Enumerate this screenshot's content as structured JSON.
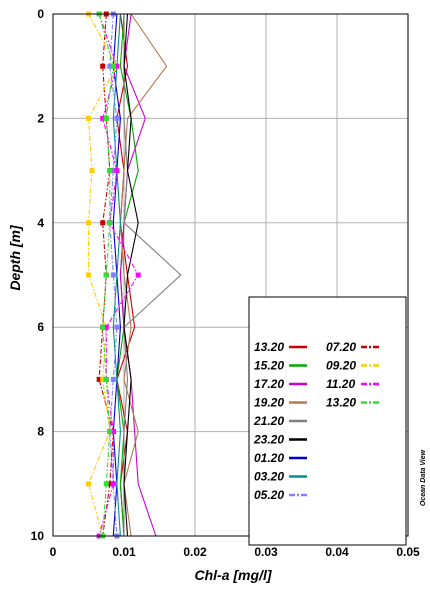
{
  "chart_data": {
    "type": "line",
    "orientation": "vertical-profile",
    "xlabel": "Chl-a [mg/l]",
    "ylabel": "Depth [m]",
    "xlim": [
      0,
      0.05
    ],
    "ylim": [
      0,
      10
    ],
    "y_inverted": true,
    "x_ticks": [
      "0",
      "0.01",
      "0.02",
      "0.03",
      "0.04",
      "0.05"
    ],
    "y_ticks": [
      "0",
      "2",
      "4",
      "6",
      "8",
      "10"
    ],
    "grid": true,
    "legend_position": "bottom-right",
    "credit": "Ocean Data View",
    "depths": [
      0,
      1,
      2,
      3,
      4,
      5,
      6,
      7,
      8,
      9,
      10
    ],
    "series": [
      {
        "name": "13.20",
        "color": "#cc0000",
        "dash": "solid",
        "values": [
          0.0095,
          0.0105,
          0.009,
          0.01,
          0.0095,
          0.0105,
          0.0115,
          0.009,
          0.0105,
          0.0095,
          0.01
        ]
      },
      {
        "name": "15.20",
        "color": "#00aa00",
        "dash": "solid",
        "values": [
          0.01,
          0.0095,
          0.011,
          0.012,
          0.01,
          0.0095,
          0.01,
          0.009,
          0.01,
          0.0095,
          0.01
        ]
      },
      {
        "name": "17.20",
        "color": "#cc00cc",
        "dash": "solid",
        "values": [
          0.011,
          0.01,
          0.013,
          0.0105,
          0.01,
          0.0095,
          0.01,
          0.011,
          0.0115,
          0.012,
          0.0145
        ]
      },
      {
        "name": "19.20",
        "color": "#b87850",
        "dash": "solid",
        "values": [
          0.011,
          0.016,
          0.0105,
          0.01,
          0.0095,
          0.01,
          0.011,
          0.01,
          0.012,
          0.01,
          0.011
        ]
      },
      {
        "name": "21.20",
        "color": "#808080",
        "dash": "solid",
        "values": [
          0.01,
          0.01,
          0.01,
          0.0105,
          0.01,
          0.018,
          0.01,
          0.0105,
          0.01,
          0.01,
          0.01
        ]
      },
      {
        "name": "23.20",
        "color": "#000000",
        "dash": "solid",
        "values": [
          0.0105,
          0.01,
          0.011,
          0.0105,
          0.012,
          0.0105,
          0.01,
          0.011,
          0.0105,
          0.01,
          0.0105
        ]
      },
      {
        "name": "01.20",
        "color": "#0000cc",
        "dash": "solid",
        "values": [
          0.009,
          0.0085,
          0.0095,
          0.009,
          0.0085,
          0.009,
          0.0095,
          0.009,
          0.0085,
          0.009,
          0.0085
        ]
      },
      {
        "name": "03.20",
        "color": "#009090",
        "dash": "solid",
        "values": [
          0.0095,
          0.009,
          0.0085,
          0.009,
          0.0095,
          0.009,
          0.0085,
          0.009,
          0.0095,
          0.009,
          0.0095
        ]
      },
      {
        "name": "05.20",
        "color": "#8080ff",
        "dash": "dashdot",
        "values": [
          0.0085,
          0.008,
          0.009,
          0.0085,
          0.008,
          0.0085,
          0.009,
          0.0085,
          0.008,
          0.0085,
          0.009
        ]
      },
      {
        "name": "07.20",
        "color": "#cc0000",
        "dash": "dashdot",
        "values": [
          0.0075,
          0.007,
          0.0075,
          0.008,
          0.007,
          0.0075,
          0.007,
          0.0065,
          0.0085,
          0.008,
          0.007
        ]
      },
      {
        "name": "09.20",
        "color": "#ffcc00",
        "dash": "dashdot",
        "values": [
          0.005,
          0.009,
          0.005,
          0.0055,
          0.005,
          0.005,
          0.0075,
          0.007,
          0.008,
          0.005,
          0.007
        ]
      },
      {
        "name": "11.20",
        "color": "#ff00ff",
        "dash": "dashdot",
        "values": [
          0.0065,
          0.009,
          0.007,
          0.009,
          0.008,
          0.012,
          0.0075,
          0.0075,
          0.0085,
          0.0085,
          0.0065
        ]
      },
      {
        "name": "13.20",
        "color": "#33dd33",
        "dash": "dashdot",
        "values": [
          0.0065,
          0.0085,
          0.0075,
          0.008,
          0.008,
          0.0075,
          0.007,
          0.0075,
          0.008,
          0.0075,
          0.007
        ]
      }
    ]
  }
}
